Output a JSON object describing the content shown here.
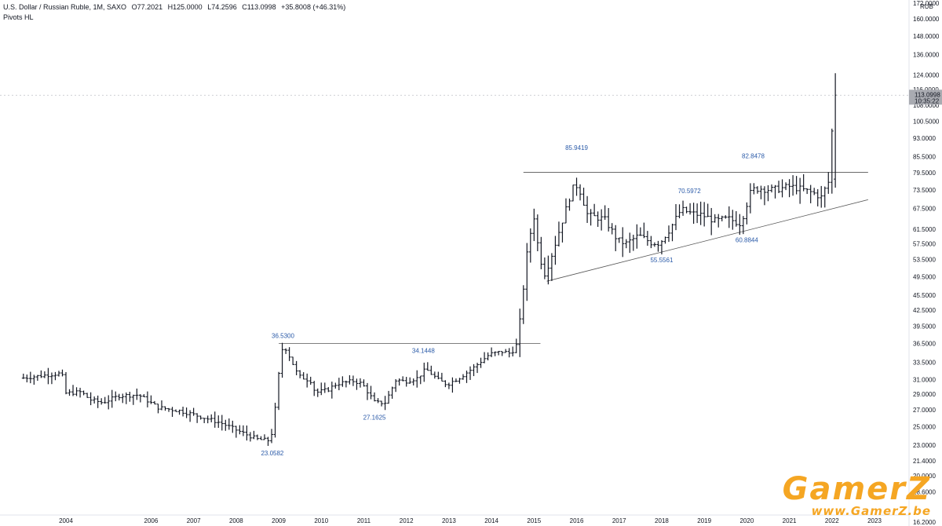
{
  "header": {
    "symbol": "U.S. Dollar / Russian Ruble, 1M, SAXO",
    "open": "O77.2021",
    "high": "H125.0000",
    "low": "L74.2596",
    "close": "C113.0998",
    "change": "+35.8008 (+46.31%)",
    "indicator": "Pivots HL"
  },
  "currency": "RUB",
  "price_tag": {
    "price": "113.0998",
    "time": "10:35:22",
    "value": 113.0998,
    "color": "#a9abb1"
  },
  "colors": {
    "bars": "#131722",
    "pivot_text": "#2a5aa8",
    "level_line": "#555555",
    "watermark": "#f5a623"
  },
  "chart_data": {
    "type": "ohlc",
    "scale": "log",
    "ylim": [
      16.2,
      172
    ],
    "x_ticks": [
      "2004",
      "2006",
      "2007",
      "2008",
      "2009",
      "2010",
      "2011",
      "2012",
      "2013",
      "2014",
      "2015",
      "2016",
      "2017",
      "2018",
      "2019",
      "2020",
      "2021",
      "2022",
      "2023"
    ],
    "x_tick_years": [
      2004,
      2006,
      2007,
      2008,
      2009,
      2010,
      2011,
      2012,
      2013,
      2014,
      2015,
      2016,
      2017,
      2018,
      2019,
      2020,
      2021,
      2022,
      2023
    ],
    "y_ticks": [
      "16.2000",
      "18.6000",
      "20.0000",
      "21.4000",
      "23.0000",
      "25.0000",
      "27.0000",
      "29.0000",
      "31.0000",
      "33.5000",
      "36.5000",
      "39.5000",
      "42.5000",
      "45.5000",
      "49.5000",
      "53.5000",
      "57.5000",
      "61.5000",
      "67.5000",
      "73.5000",
      "79.5000",
      "85.5000",
      "93.0000",
      "100.5000",
      "108.0000",
      "116.0000",
      "124.0000",
      "136.0000",
      "148.0000",
      "160.0000",
      "172.0000"
    ],
    "y_tick_values": [
      16.2,
      18.6,
      20.0,
      21.4,
      23.0,
      25.0,
      27.0,
      29.0,
      31.0,
      33.5,
      36.5,
      39.5,
      42.5,
      45.5,
      49.5,
      53.5,
      57.5,
      61.5,
      67.5,
      73.5,
      79.5,
      85.5,
      93.0,
      100.5,
      108.0,
      116.0,
      124.0,
      136.0,
      148.0,
      160.0,
      172.0
    ],
    "pivots": [
      {
        "t": 2008.85,
        "v": 23.0582,
        "label": "23.0582",
        "pos": "below"
      },
      {
        "t": 2009.1,
        "v": 36.53,
        "label": "36.5300",
        "pos": "above"
      },
      {
        "t": 2011.25,
        "v": 27.1625,
        "label": "27.1625",
        "pos": "below"
      },
      {
        "t": 2012.4,
        "v": 34.1448,
        "label": "34.1448",
        "pos": "above"
      },
      {
        "t": 2016.0,
        "v": 85.9419,
        "label": "85.9419",
        "pos": "above"
      },
      {
        "t": 2018.0,
        "v": 55.5561,
        "label": "55.5561",
        "pos": "below"
      },
      {
        "t": 2018.65,
        "v": 70.5972,
        "label": "70.5972",
        "pos": "above"
      },
      {
        "t": 2020.15,
        "v": 82.8478,
        "label": "82.8478",
        "pos": "above"
      },
      {
        "t": 2020.0,
        "v": 60.8844,
        "label": "60.8844",
        "pos": "below"
      }
    ],
    "levels": [
      {
        "t1": 2009.0,
        "t2": 2015.15,
        "v": 36.53
      },
      {
        "t1": 2014.75,
        "t2": 2022.85,
        "v": 79.6
      }
    ],
    "trendline": {
      "t1": 2015.3,
      "v1": 48.5,
      "t2": 2022.85,
      "v2": 70.3
    },
    "keypoints": [
      [
        2003.0,
        31.2
      ],
      [
        2003.4,
        31.5
      ],
      [
        2003.95,
        31.9
      ],
      [
        2004.0,
        29.1
      ],
      [
        2004.4,
        29.3
      ],
      [
        2004.6,
        28.3
      ],
      [
        2004.9,
        27.9
      ],
      [
        2005.3,
        28.8
      ],
      [
        2005.75,
        28.9
      ],
      [
        2006.2,
        27.3
      ],
      [
        2006.7,
        26.9
      ],
      [
        2007.2,
        26.2
      ],
      [
        2007.7,
        25.4
      ],
      [
        2008.2,
        24.3
      ],
      [
        2008.55,
        23.6
      ],
      [
        2008.8,
        23.5
      ],
      [
        2008.9,
        24.5
      ],
      [
        2009.0,
        29.0
      ],
      [
        2009.1,
        35.5
      ],
      [
        2009.2,
        35.8
      ],
      [
        2009.5,
        31.5
      ],
      [
        2009.8,
        30.8
      ],
      [
        2009.9,
        29.2
      ],
      [
        2010.2,
        29.6
      ],
      [
        2010.4,
        30.4
      ],
      [
        2010.8,
        30.8
      ],
      [
        2011.0,
        30.4
      ],
      [
        2011.3,
        27.9
      ],
      [
        2011.55,
        27.9
      ],
      [
        2011.8,
        31.0
      ],
      [
        2012.0,
        30.7
      ],
      [
        2012.3,
        31.2
      ],
      [
        2012.5,
        32.5
      ],
      [
        2012.8,
        30.9
      ],
      [
        2013.0,
        30.3
      ],
      [
        2013.3,
        31.3
      ],
      [
        2013.6,
        32.6
      ],
      [
        2014.0,
        34.8
      ],
      [
        2014.3,
        35.2
      ],
      [
        2014.5,
        34.9
      ],
      [
        2014.65,
        36.5
      ],
      [
        2014.75,
        43.0
      ],
      [
        2014.85,
        53.0
      ],
      [
        2014.95,
        60.0
      ],
      [
        2015.05,
        65.5
      ],
      [
        2015.15,
        55.0
      ],
      [
        2015.3,
        50.0
      ],
      [
        2015.5,
        56.0
      ],
      [
        2015.75,
        65.5
      ],
      [
        2015.9,
        72.0
      ],
      [
        2016.0,
        75.5
      ],
      [
        2016.1,
        74.0
      ],
      [
        2016.3,
        65.5
      ],
      [
        2016.7,
        64.3
      ],
      [
        2017.0,
        58.5
      ],
      [
        2017.2,
        57.5
      ],
      [
        2017.5,
        59.7
      ],
      [
        2017.8,
        57.8
      ],
      [
        2018.0,
        57.7
      ],
      [
        2018.25,
        61.8
      ],
      [
        2018.5,
        67.2
      ],
      [
        2018.75,
        66.0
      ],
      [
        2019.0,
        65.5
      ],
      [
        2019.3,
        63.8
      ],
      [
        2019.6,
        64.5
      ],
      [
        2019.9,
        63.0
      ],
      [
        2020.15,
        73.5
      ],
      [
        2020.35,
        74.0
      ],
      [
        2020.6,
        73.5
      ],
      [
        2020.85,
        74.0
      ],
      [
        2021.05,
        74.7
      ],
      [
        2021.3,
        73.8
      ],
      [
        2021.6,
        72.5
      ],
      [
        2021.8,
        71.0
      ],
      [
        2021.9,
        74.5
      ],
      [
        2022.0,
        77.2
      ],
      [
        2022.08,
        113.0998
      ]
    ]
  },
  "watermark": {
    "big": "GamerZ",
    "small": "www.GamerZ.be"
  }
}
